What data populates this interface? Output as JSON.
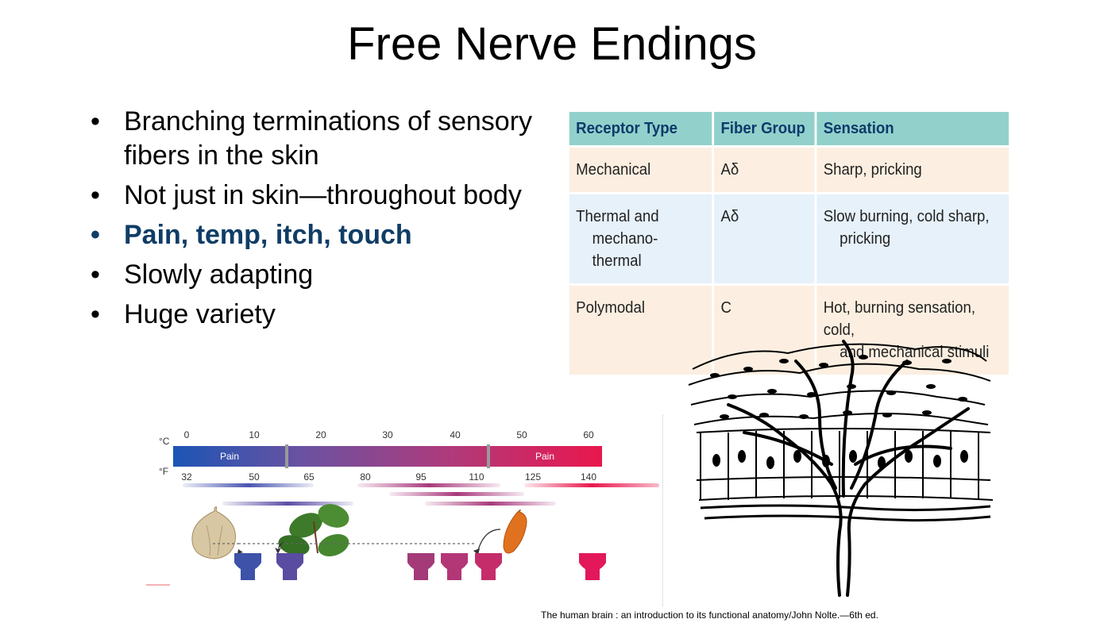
{
  "slide": {
    "title": "Free Nerve Endings",
    "bullets": [
      {
        "text": "Branching terminations of sensory fibers in the skin",
        "highlight": false
      },
      {
        "text": "Not just in skin—throughout body",
        "highlight": false
      },
      {
        "text": "Pain, temp, itch, touch",
        "highlight": true
      },
      {
        "text": "Slowly adapting",
        "highlight": false
      },
      {
        "text": "Huge variety",
        "highlight": false
      }
    ],
    "bullet_symbol": "•",
    "highlight_color": "#0f3d66",
    "citation": "The human brain : an introduction to its functional anatomy/John Nolte.—6th ed."
  },
  "table": {
    "headers": [
      "Receptor Type",
      "Fiber Group",
      "Sensation"
    ],
    "rows": [
      {
        "type": [
          "Mechanical"
        ],
        "fiber": "Aδ",
        "sensation": [
          "Sharp, pricking"
        ]
      },
      {
        "type": [
          "Thermal and",
          "mechano-thermal"
        ],
        "fiber": "Aδ",
        "sensation": [
          "Slow burning, cold sharp,",
          "pricking"
        ]
      },
      {
        "type": [
          "Polymodal"
        ],
        "fiber": "C",
        "sensation": [
          "Hot, burning sensation, cold,",
          "and mechanical stimuli"
        ]
      }
    ],
    "header_color": "#92d1cb",
    "row_colors": [
      "#fcefe1",
      "#e6f1fa",
      "#fcefe1"
    ]
  },
  "thermometer": {
    "celsius_unit": "°C",
    "fahrenheit_unit": "°F",
    "celsius_ticks": [
      "0",
      "10",
      "20",
      "30",
      "40",
      "50",
      "60"
    ],
    "fahrenheit_ticks": [
      "32",
      "50",
      "65",
      "80",
      "95",
      "110",
      "125",
      "140"
    ],
    "pain_label_left": "Pain",
    "pain_label_right": "Pain",
    "icons": [
      "garlic-icon",
      "mint-leaf-icon",
      "chili-pepper-icon",
      "ion-channel-icon"
    ]
  },
  "figure": {
    "icon": "free-nerve-ending-illustration"
  }
}
